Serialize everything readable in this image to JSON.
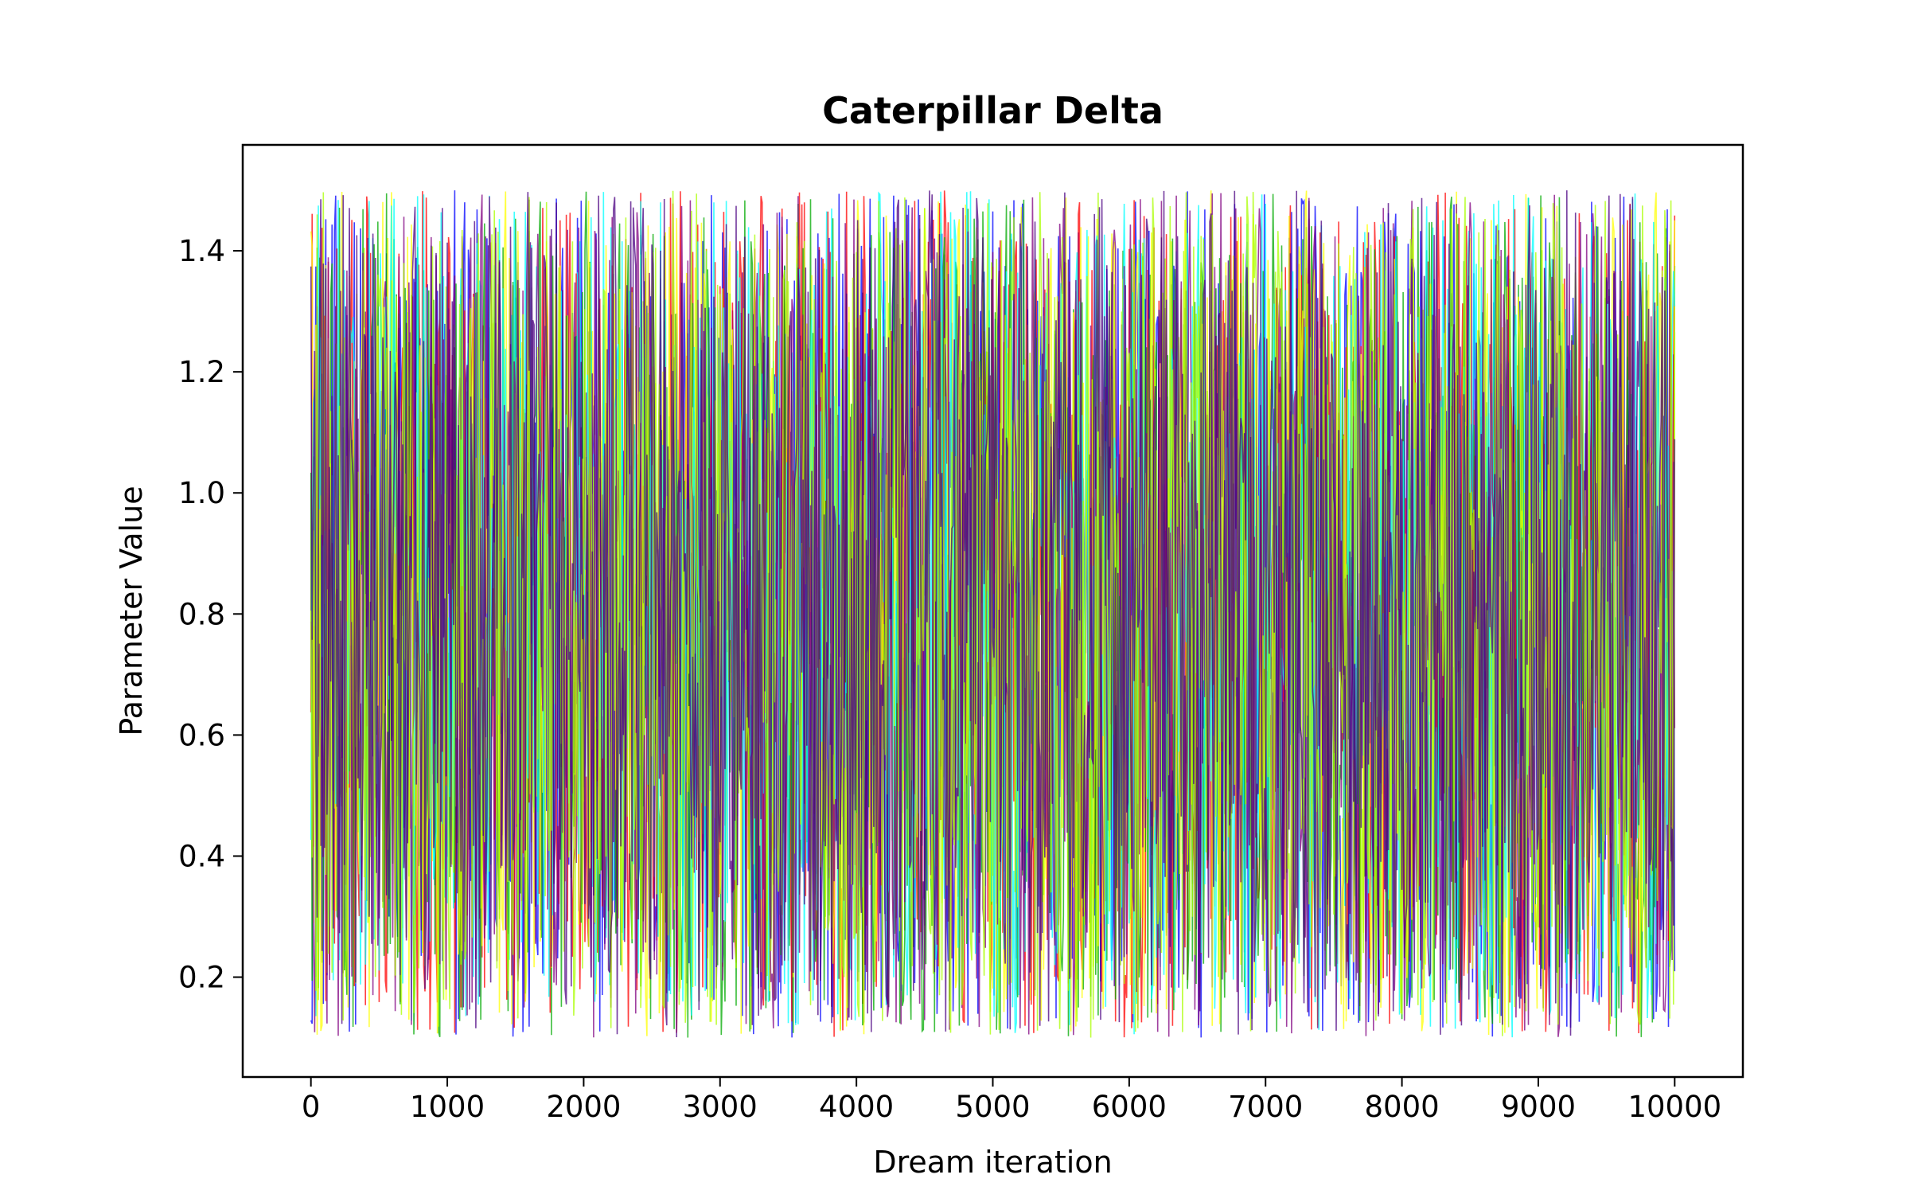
{
  "chart_data": {
    "type": "line",
    "title": "Caterpillar Delta",
    "xlabel": "Dream iteration",
    "ylabel": "Parameter Value",
    "xlim": [
      -500,
      10500
    ],
    "ylim": [
      0.035,
      1.575
    ],
    "x_ticks": [
      0,
      1000,
      2000,
      3000,
      4000,
      5000,
      6000,
      7000,
      8000,
      9000,
      10000
    ],
    "y_ticks": [
      0.2,
      0.4,
      0.6,
      0.8,
      1.0,
      1.2,
      1.4
    ],
    "x_tick_labels": [
      "0",
      "1000",
      "2000",
      "3000",
      "4000",
      "5000",
      "6000",
      "7000",
      "8000",
      "9000",
      "10000"
    ],
    "y_tick_labels": [
      "0.2",
      "0.4",
      "0.6",
      "0.8",
      "1.0",
      "1.2",
      "1.4"
    ],
    "grid": false,
    "legend": "none",
    "chains": {
      "count": 8,
      "x_start": 0,
      "x_end": 10000,
      "value_min": 0.1,
      "value_max": 1.5,
      "colors": [
        "#0000ff",
        "#ff0000",
        "#00aa00",
        "#ffff00",
        "#00ffff",
        "#800080",
        "#aaff00",
        "#4b0082"
      ]
    }
  }
}
